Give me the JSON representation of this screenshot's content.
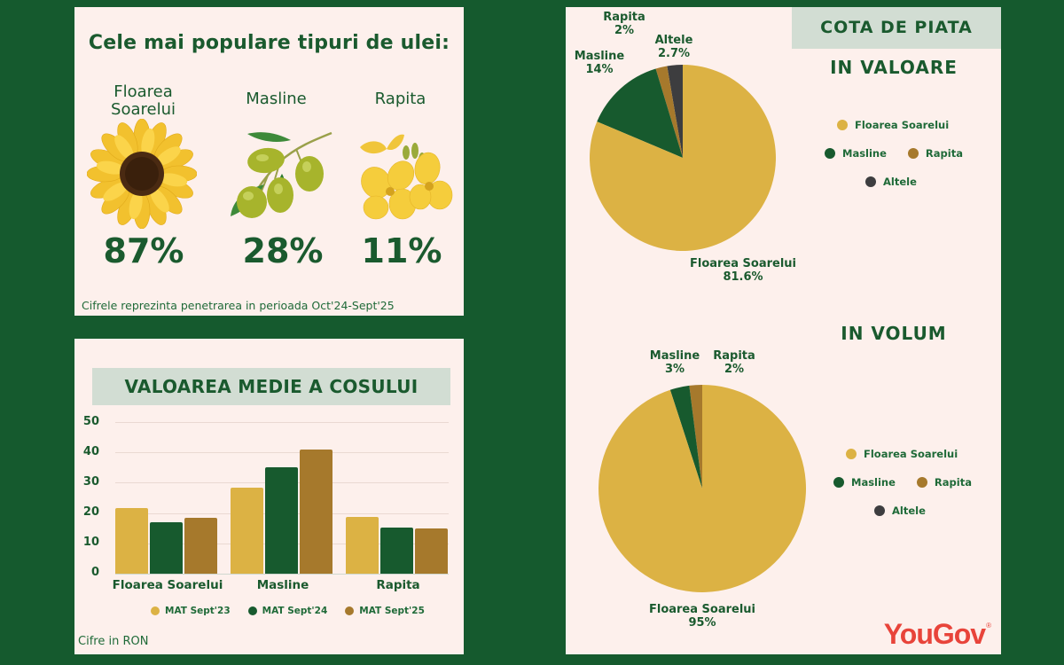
{
  "penetration": {
    "title": "Cele mai populare tipuri de ulei:",
    "items": [
      {
        "label_line1": "Floarea",
        "label_line2": "Soarelui",
        "value": "87%",
        "icon": "sunflower-icon"
      },
      {
        "label_line1": "Masline",
        "label_line2": "",
        "value": "28%",
        "icon": "olive-branch-icon"
      },
      {
        "label_line1": "Rapita",
        "label_line2": "",
        "value": "11%",
        "icon": "rapeseed-flower-icon"
      }
    ],
    "note": "Cifrele reprezinta penetrarea in perioada Oct'24-Sept'25"
  },
  "basket": {
    "title": "VALOAREA MEDIE  A COSULUI",
    "note": "Cifre in RON",
    "yticks": [
      "50",
      "40",
      "30",
      "20",
      "10",
      "0"
    ],
    "categories": [
      "Floarea Soarelui",
      "Masline",
      "Rapita"
    ],
    "legend": [
      "MAT Sept'23",
      "MAT Sept'24",
      "MAT Sept'25"
    ]
  },
  "market_share": {
    "title": "COTA DE  PIATA",
    "value_title": "IN VALOARE",
    "volume_title": "IN VOLUM",
    "value_labels": {
      "rapita_name": "Rapita",
      "rapita_pct": "2%",
      "altele_name": "Altele",
      "altele_pct": "2.7%",
      "masline_name": "Masline",
      "masline_pct": "14%",
      "floarea_name": "Floarea Soarelui",
      "floarea_pct": "81.6%"
    },
    "volume_labels": {
      "masline_name": "Masline",
      "masline_pct": "3%",
      "rapita_name": "Rapita",
      "rapita_pct": "2%",
      "floarea_name": "Floarea Soarelui",
      "floarea_pct": "95%"
    },
    "legend": {
      "floarea": "Floarea Soarelui",
      "masline": "Masline",
      "rapita": "Rapita",
      "altele": "Altele"
    }
  },
  "brand": {
    "logo_text": "YouGov",
    "registered": "®"
  },
  "colors": {
    "background": "#155a2e",
    "panel": "#fdf0ec",
    "gold": "#dcb244",
    "green": "#175a2e",
    "brown": "#a6792c",
    "dark": "#3d3d3f",
    "brand_red": "#e8443a"
  },
  "chart_data": [
    {
      "type": "bar",
      "title": "VALOAREA MEDIE  A COSULUI",
      "categories": [
        "Floarea Soarelui",
        "Masline",
        "Rapita"
      ],
      "series": [
        {
          "name": "MAT Sept'23",
          "values": [
            21.5,
            28.5,
            18.7
          ],
          "color": "#dcb244"
        },
        {
          "name": "MAT Sept'24",
          "values": [
            17,
            35,
            15.1
          ],
          "color": "#175a2e"
        },
        {
          "name": "MAT Sept'25",
          "values": [
            18.5,
            41,
            14.9
          ],
          "color": "#a6792c"
        }
      ],
      "xlabel": "",
      "ylabel": "RON",
      "ylim": [
        0,
        50
      ],
      "yticks": [
        0,
        10,
        20,
        30,
        40,
        50
      ],
      "grid": true,
      "legend_position": "bottom"
    },
    {
      "type": "pie",
      "title": "COTA DE PIATA - IN VALOARE",
      "labels": [
        "Floarea Soarelui",
        "Masline",
        "Rapita",
        "Altele"
      ],
      "values": [
        81.6,
        14,
        2,
        2.7
      ],
      "colors": [
        "#dcb244",
        "#175a2e",
        "#a6792c",
        "#3d3d3f"
      ],
      "legend_position": "right"
    },
    {
      "type": "pie",
      "title": "COTA DE PIATA - IN VOLUM",
      "labels": [
        "Floarea Soarelui",
        "Masline",
        "Rapita",
        "Altele"
      ],
      "values": [
        95,
        3,
        2,
        0
      ],
      "colors": [
        "#dcb244",
        "#175a2e",
        "#a6792c",
        "#3d3d3f"
      ],
      "legend_position": "right"
    }
  ]
}
